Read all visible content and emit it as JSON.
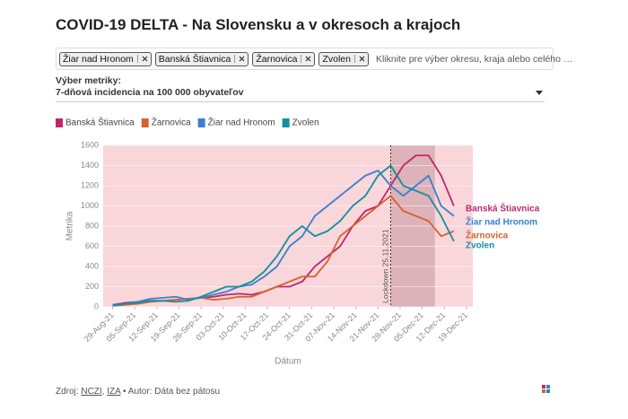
{
  "header": {
    "title": "COVID-19 DELTA - Na Slovensku a v okresoch a krajoch"
  },
  "filters": {
    "chips": [
      "Žiar nad Hronom",
      "Banská Štiavnica",
      "Žarnovica",
      "Zvolen"
    ],
    "placeholder": "Kliknite pre výber okresu, kraja alebo celého …"
  },
  "metric": {
    "label": "Výber metriky:",
    "selected": "7-dňová incidencia na 100 000 obyvateľov"
  },
  "chart_data": {
    "type": "line",
    "x_label": "Dátum",
    "y_label": "Metrika",
    "x": [
      "2021-08-29",
      "2021-09-02",
      "2021-09-06",
      "2021-09-10",
      "2021-09-14",
      "2021-09-18",
      "2021-09-22",
      "2021-09-26",
      "2021-09-30",
      "2021-10-04",
      "2021-10-08",
      "2021-10-12",
      "2021-10-16",
      "2021-10-20",
      "2021-10-24",
      "2021-10-28",
      "2021-11-01",
      "2021-11-05",
      "2021-11-09",
      "2021-11-13",
      "2021-11-17",
      "2021-11-21",
      "2021-11-25",
      "2021-11-29",
      "2021-12-03",
      "2021-12-07",
      "2021-12-11",
      "2021-12-15"
    ],
    "series": [
      {
        "name": "Banská Štiavnica",
        "color": "#c0286e",
        "values": [
          20,
          40,
          50,
          60,
          60,
          70,
          80,
          90,
          100,
          120,
          130,
          120,
          150,
          200,
          200,
          250,
          400,
          500,
          600,
          800,
          950,
          1000,
          1200,
          1400,
          1500,
          1500,
          1300,
          1000
        ]
      },
      {
        "name": "Žarnovica",
        "color": "#d2632f",
        "values": [
          10,
          20,
          30,
          50,
          60,
          70,
          80,
          90,
          70,
          80,
          100,
          100,
          150,
          200,
          250,
          300,
          300,
          450,
          700,
          800,
          900,
          1000,
          1100,
          950,
          900,
          850,
          700,
          750
        ]
      },
      {
        "name": "Žiar nad Hronom",
        "color": "#3c7fcf",
        "values": [
          10,
          30,
          50,
          80,
          90,
          100,
          70,
          90,
          120,
          150,
          200,
          220,
          300,
          400,
          600,
          700,
          900,
          1000,
          1100,
          1200,
          1300,
          1350,
          1200,
          1100,
          1200,
          1300,
          1000,
          900
        ]
      },
      {
        "name": "Zvolen",
        "color": "#15909e",
        "values": [
          20,
          30,
          40,
          60,
          60,
          50,
          60,
          100,
          150,
          200,
          200,
          250,
          350,
          500,
          700,
          800,
          700,
          750,
          850,
          1000,
          1100,
          1300,
          1400,
          1200,
          1150,
          1100,
          900,
          650
        ]
      }
    ],
    "xlim": [
      "2021-08-26",
      "2021-12-21"
    ],
    "xticks": [
      {
        "value": "2021-08-29",
        "label": "29-Aug-21"
      },
      {
        "value": "2021-09-05",
        "label": "05-Sep-21"
      },
      {
        "value": "2021-09-12",
        "label": "12-Sep-21"
      },
      {
        "value": "2021-09-19",
        "label": "19-Sep-21"
      },
      {
        "value": "2021-09-26",
        "label": "26-Sep-21"
      },
      {
        "value": "2021-10-03",
        "label": "03-Oct-21"
      },
      {
        "value": "2021-10-10",
        "label": "10-Oct-21"
      },
      {
        "value": "2021-10-17",
        "label": "17-Oct-21"
      },
      {
        "value": "2021-10-24",
        "label": "24-Oct-21"
      },
      {
        "value": "2021-10-31",
        "label": "31-Oct-21"
      },
      {
        "value": "2021-11-07",
        "label": "07-Nov-21"
      },
      {
        "value": "2021-11-14",
        "label": "14-Nov-21"
      },
      {
        "value": "2021-11-21",
        "label": "21-Nov-21"
      },
      {
        "value": "2021-11-28",
        "label": "28-Nov-21"
      },
      {
        "value": "2021-12-05",
        "label": "05-Dec-21"
      },
      {
        "value": "2021-12-12",
        "label": "12-Dec-21"
      },
      {
        "value": "2021-12-19",
        "label": "19-Dec-21"
      }
    ],
    "ylim": [
      0,
      1600
    ],
    "yticks": [
      0,
      200,
      400,
      600,
      800,
      1000,
      1200,
      1400,
      1600
    ],
    "grid": true,
    "background": "#f9d6d9",
    "highlight": {
      "from": "2021-11-25",
      "to": "2021-12-09",
      "color": "#d6a9b0"
    },
    "annotation": {
      "x": "2021-11-25",
      "label": "Lockdown 25.11.2021"
    }
  },
  "footer": {
    "prefix": "Zdroj:",
    "links": [
      "NCZI",
      "IZA"
    ],
    "separator": ",",
    "author": "• Autor: Dáta bez pátosu"
  }
}
